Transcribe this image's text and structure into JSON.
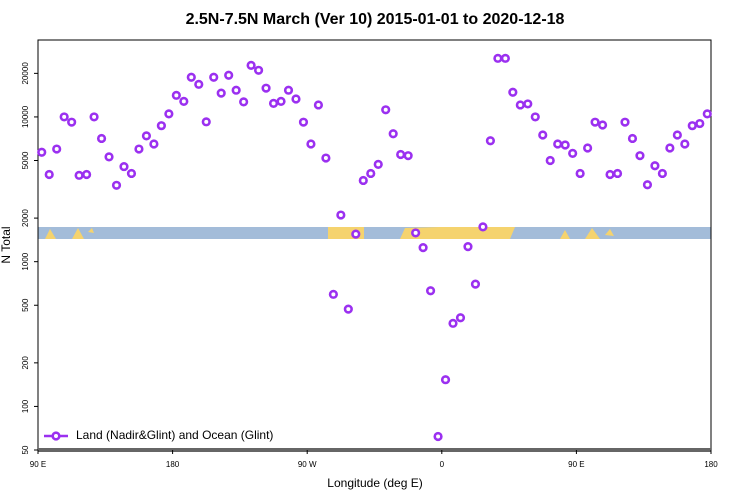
{
  "chart_data": {
    "type": "scatter",
    "title": "2.5N-7.5N March (Ver 10)   2015-01-01 to 2020-12-18",
    "x_label": "Longitude (deg E)",
    "y_label": "N Total",
    "xlim": [
      90,
      540
    ],
    "xticks": [
      {
        "value": 90,
        "label": "90 E"
      },
      180,
      {
        "value": 270,
        "label": "90 W"
      },
      {
        "value": 360,
        "label": "0"
      },
      {
        "value": 450,
        "label": "90 E"
      },
      {
        "value": 540,
        "label": "180"
      }
    ],
    "ylim": [
      50,
      34000
    ],
    "log_y": true,
    "yticks": [
      50,
      100,
      200,
      500,
      1000,
      2000,
      5000,
      10000,
      20000
    ],
    "legend": "lower left",
    "series": [
      {
        "name": "Land (Nadir&Glint) and Ocean (Glint)",
        "color": "#9b30f0",
        "x": [
          92.5,
          97.5,
          102.5,
          107.5,
          112.5,
          117.5,
          122.5,
          127.5,
          132.5,
          137.5,
          142.5,
          147.5,
          152.5,
          157.5,
          162.5,
          167.5,
          172.5,
          177.5,
          182.5,
          187.5,
          192.5,
          197.5,
          202.5,
          207.5,
          212.5,
          217.5,
          222.5,
          227.5,
          232.5,
          237.5,
          242.5,
          247.5,
          252.5,
          257.5,
          262.5,
          267.5,
          272.5,
          277.5,
          282.5,
          287.5,
          292.5,
          297.5,
          302.5,
          307.5,
          312.5,
          317.5,
          322.5,
          327.5,
          332.5,
          337.5,
          342.5,
          347.5,
          352.5,
          357.5,
          362.5,
          367.5,
          372.5,
          377.5,
          382.5,
          387.5,
          392.5,
          397.5,
          402.5,
          407.5,
          412.5,
          417.5,
          422.5,
          427.5,
          432.5,
          437.5,
          442.5,
          447.5,
          452.5,
          457.5,
          462.5,
          467.5,
          472.5,
          477.5,
          482.5,
          487.5,
          492.5,
          497.5,
          502.5,
          507.5,
          512.5,
          517.5,
          522.5,
          527.5,
          532.5,
          537.5
        ],
        "values": [
          5700,
          4000,
          6000,
          10000,
          9200,
          3950,
          4000,
          10000,
          7100,
          5300,
          3370,
          4540,
          4070,
          6000,
          7400,
          6500,
          8700,
          10500,
          14100,
          12800,
          18800,
          16800,
          9250,
          18800,
          14600,
          19400,
          15300,
          12700,
          22700,
          21000,
          15800,
          12400,
          12800,
          15300,
          13300,
          9200,
          6500,
          12100,
          5200,
          595,
          2100,
          470,
          1550,
          3640,
          4070,
          4700,
          11200,
          7650,
          5500,
          5400,
          1580,
          1250,
          630,
          62,
          153,
          375,
          410,
          1270,
          700,
          1740,
          6850,
          25400,
          25400,
          14800,
          12100,
          12300,
          10000,
          7500,
          5000,
          6500,
          6400,
          5600,
          4070,
          6100,
          9200,
          8800,
          4000,
          4070,
          9200,
          7100,
          5400,
          3400,
          4600,
          4070,
          6100,
          7500,
          6500,
          8700,
          9000,
          10500
        ]
      }
    ]
  }
}
